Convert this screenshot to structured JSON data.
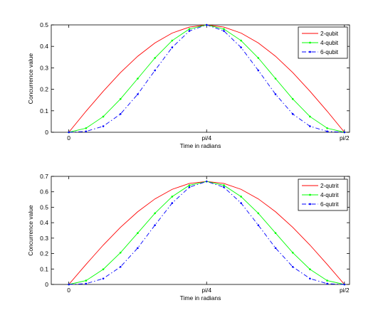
{
  "chart_data": [
    {
      "type": "line",
      "title": "",
      "xlabel": "Time in radians",
      "ylabel": "Concurrence value",
      "x_ticks": [
        "0",
        "pi/4",
        "pi/2"
      ],
      "x_tick_values": [
        0,
        0.7854,
        1.5708
      ],
      "xlim": [
        -0.1,
        1.6
      ],
      "ylim": [
        0,
        0.5
      ],
      "y_ticks": [
        "0",
        "0.1",
        "0.2",
        "0.3",
        "0.4",
        "0.5"
      ],
      "y_tick_values": [
        0,
        0.1,
        0.2,
        0.3,
        0.4,
        0.5
      ],
      "grid": false,
      "legend_position": "top-right",
      "x": [
        0,
        0.0982,
        0.1963,
        0.2945,
        0.3927,
        0.4909,
        0.589,
        0.6872,
        0.7854,
        0.8836,
        0.9817,
        1.0799,
        1.1781,
        1.2763,
        1.3744,
        1.4726,
        1.5708
      ],
      "series": [
        {
          "name": "2-qubit",
          "color": "#ff0000",
          "style": "solid",
          "marker": "none",
          "values": [
            0,
            0.098,
            0.191,
            0.278,
            0.354,
            0.416,
            0.462,
            0.49,
            0.5,
            0.49,
            0.462,
            0.416,
            0.354,
            0.278,
            0.191,
            0.098,
            0
          ]
        },
        {
          "name": "4-qubit",
          "color": "#00ff00",
          "style": "solid",
          "marker": "dot",
          "values": [
            0,
            0.019,
            0.073,
            0.155,
            0.25,
            0.346,
            0.427,
            0.481,
            0.5,
            0.481,
            0.427,
            0.346,
            0.25,
            0.155,
            0.073,
            0.019,
            0
          ]
        },
        {
          "name": "6-qubit",
          "color": "#0000ff",
          "style": "dashdot",
          "marker": "dot",
          "values": [
            0,
            0.004,
            0.028,
            0.085,
            0.177,
            0.288,
            0.395,
            0.472,
            0.5,
            0.472,
            0.395,
            0.288,
            0.177,
            0.085,
            0.028,
            0.004,
            0
          ]
        }
      ]
    },
    {
      "type": "line",
      "title": "",
      "xlabel": "Time in radians",
      "ylabel": "Concurrence value",
      "x_ticks": [
        "0",
        "pi/4",
        "pi/2"
      ],
      "x_tick_values": [
        0,
        0.7854,
        1.5708
      ],
      "xlim": [
        -0.1,
        1.6
      ],
      "ylim": [
        0,
        0.7
      ],
      "y_ticks": [
        "0",
        "0.1",
        "0.2",
        "0.3",
        "0.4",
        "0.5",
        "0.6",
        "0.7"
      ],
      "y_tick_values": [
        0,
        0.1,
        0.2,
        0.3,
        0.4,
        0.5,
        0.6,
        0.7
      ],
      "grid": false,
      "legend_position": "top-right",
      "x": [
        0,
        0.0982,
        0.1963,
        0.2945,
        0.3927,
        0.4909,
        0.589,
        0.6872,
        0.7854,
        0.8836,
        0.9817,
        1.0799,
        1.1781,
        1.2763,
        1.3744,
        1.4726,
        1.5708
      ],
      "series": [
        {
          "name": "2-qutrit",
          "color": "#ff0000",
          "style": "solid",
          "marker": "none",
          "values": [
            0,
            0.13,
            0.255,
            0.37,
            0.471,
            0.554,
            0.616,
            0.654,
            0.667,
            0.654,
            0.616,
            0.554,
            0.471,
            0.37,
            0.255,
            0.13,
            0
          ]
        },
        {
          "name": "4-qutrit",
          "color": "#00ff00",
          "style": "solid",
          "marker": "dot",
          "values": [
            0,
            0.025,
            0.098,
            0.206,
            0.333,
            0.461,
            0.569,
            0.642,
            0.667,
            0.642,
            0.569,
            0.461,
            0.333,
            0.206,
            0.098,
            0.025,
            0
          ]
        },
        {
          "name": "6-qutrit",
          "color": "#0000ff",
          "style": "dashdot",
          "marker": "dot",
          "values": [
            0,
            0.005,
            0.038,
            0.114,
            0.236,
            0.384,
            0.527,
            0.63,
            0.667,
            0.63,
            0.527,
            0.384,
            0.236,
            0.114,
            0.038,
            0.005,
            0
          ]
        }
      ]
    }
  ]
}
